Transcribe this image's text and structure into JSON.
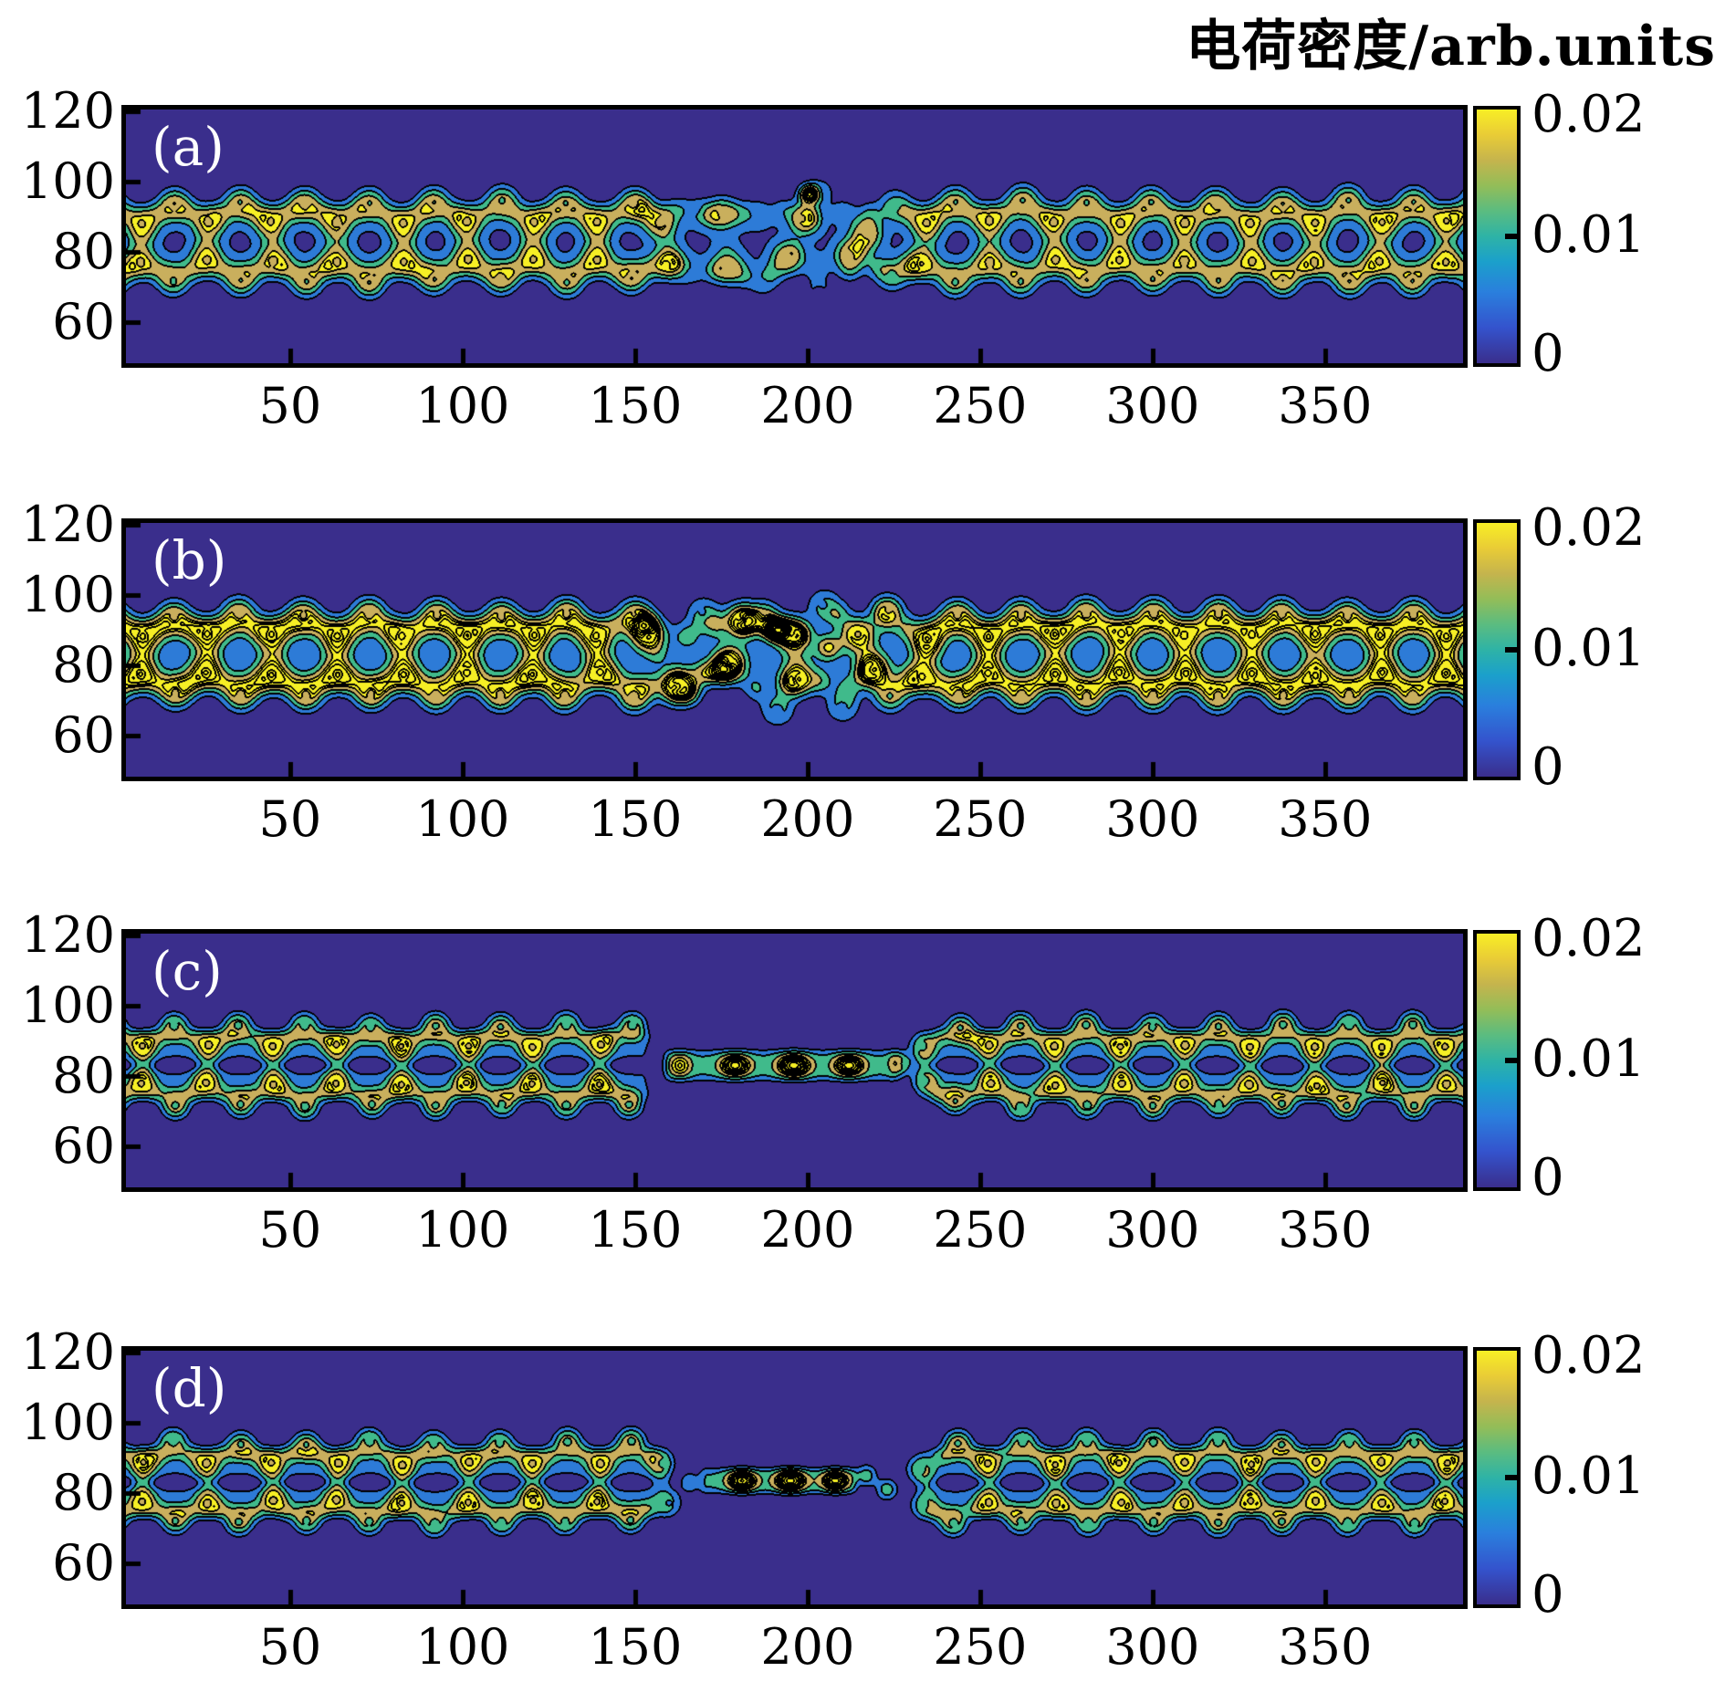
{
  "title": "电荷密度/arb.units",
  "colorbar": {
    "labels": [
      "0.02",
      "0.01",
      "0"
    ],
    "min": 0,
    "max": 0.02,
    "tick_values": [
      0,
      0.01,
      0.02
    ],
    "gradient": [
      "#3a2e8c 0%",
      "#3453cd 14%",
      "#2a7fdd 28%",
      "#1ba0cb 40%",
      "#2eb3a6 50%",
      "#5bbc80 60%",
      "#93bd58 70%",
      "#c5b44d 80%",
      "#e9cc36 90%",
      "#f8ee25 100%"
    ]
  },
  "chart_data": {
    "type": "heatmap",
    "subtype": "filled-contour",
    "title": "电荷密度/arb.units",
    "xlabel": "",
    "ylabel": "",
    "xlim": [
      2.4,
      390
    ],
    "ylim": [
      48.3,
      120.5
    ],
    "x_ticks": [
      50,
      100,
      150,
      200,
      250,
      300,
      350
    ],
    "y_ticks": [
      120,
      100,
      80,
      60
    ],
    "value_range": [
      0,
      0.02
    ],
    "fill_levels": [
      0,
      0.004,
      0.008,
      0.012,
      0.016
    ],
    "extra_line_step_above": 0.002,
    "fill_colors": [
      "#3a2e8c",
      "#2d7bd7",
      "#40ba8b",
      "#c9af5d",
      "#f6ef25"
    ],
    "line_color": "#000000",
    "colormap": "parula",
    "lattice": {
      "period": 18.9,
      "x0": 16.5,
      "y_center": 83,
      "description": "zigzag honeycomb nanoribbon charge density, hexagon rings centered on y=83"
    },
    "panels": [
      {
        "id": "a",
        "label": "(a)",
        "mode": "perturb",
        "gap": [
          162,
          222
        ],
        "A": 0.0172,
        "sig": 3.05,
        "dip": 0.42,
        "dipSig": 1.15,
        "bondAmp": 0.006,
        "bondSig": 2.45,
        "vBond": 0.6,
        "nearJ": 1.0,
        "gj": 2.8,
        "gAmp": 1.1,
        "gVertex": 0.55,
        "taperMin": 0.5,
        "pairMin": 0.75,
        "taperLen": 14,
        "stripes": [
          {
            "y": 83,
            "w": 9.3,
            "amp": 0.0031
          }
        ],
        "maskGap": false,
        "spots": [
          {
            "x": 200.5,
            "y": 96.5,
            "amp": 0.021,
            "sx": 2.1,
            "sy": 1.9
          }
        ],
        "extraAtoms": [],
        "chain": null,
        "defect": "distorted reconstructed lattice bridge with one high-density adatom spot near x=200, y=96"
      },
      {
        "id": "b",
        "label": "(b)",
        "mode": "perturb",
        "gap": [
          156,
          222
        ],
        "A": 0.0195,
        "sig": 3.25,
        "dip": 0.42,
        "dipSig": 1.15,
        "bondAmp": 0.007,
        "bondSig": 2.5,
        "vBond": 0.6,
        "nearJ": 1.0,
        "gj": 4.2,
        "gAmp": 1.3,
        "gVertex": 0.7,
        "taperMin": 0.6,
        "pairMin": 0.75,
        "taperLen": 12,
        "stripes": [
          {
            "y": 83,
            "w": 9.6,
            "amp": 0.004
          }
        ],
        "maskGap": false,
        "spots": [
          {
            "x": 191,
            "y": 90,
            "amp": 0.022,
            "sx": 2.3,
            "sy": 2.0
          },
          {
            "x": 175,
            "y": 78,
            "amp": 0.013,
            "sx": 3.2,
            "sy": 2.2
          },
          {
            "x": 206,
            "y": 85,
            "amp": 0.013,
            "sx": 2.6,
            "sy": 2.4
          }
        ],
        "extraAtoms": [],
        "chain": null,
        "defect": "amorphized high-density cluster spanning x=160-220 with nested contour rings"
      },
      {
        "id": "c",
        "label": "(c)",
        "mode": "remove",
        "gap": [
          158,
          231
        ],
        "A": 0.0178,
        "sig": 2.6,
        "dip": 0.5,
        "dipSig": 1.05,
        "bondAmp": 0.0056,
        "bondSig": 2.05,
        "vBond": 1.0,
        "nearJ": 1.3,
        "gj": 0,
        "gAmp": 1,
        "gVertex": 1,
        "taperMin": 0.32,
        "pairMin": 0.5,
        "taperLen": 11,
        "stripes": [
          {
            "y": 77.54,
            "w": 4.4,
            "amp": 0.0046
          },
          {
            "y": 88.46,
            "w": 4.4,
            "amp": 0.0046
          }
        ],
        "maskGap": true,
        "spots": [
          {
            "x": 179,
            "y": 83,
            "amp": 0.019,
            "sx": 3.1,
            "sy": 2.1
          },
          {
            "x": 196,
            "y": 83,
            "amp": 0.021,
            "sx": 3.3,
            "sy": 2.2
          },
          {
            "x": 212,
            "y": 83,
            "amp": 0.019,
            "sx": 3.1,
            "sy": 2.1
          }
        ],
        "extraAtoms": [
          {
            "x": 163,
            "y": 83,
            "amp": 0.013,
            "sig": 2.2
          },
          {
            "x": 227,
            "y": 83.5,
            "amp": 0.013,
            "sig": 2.2
          }
        ],
        "chain": {
          "x0": 161,
          "x1": 224,
          "y": 83,
          "wy": 4.6,
          "amp": 0.0086,
          "soft": 5
        },
        "defect": "linear carbon chain bridge along y=83 between x=161-224 with three bright cores"
      },
      {
        "id": "d",
        "label": "(d)",
        "mode": "remove",
        "gap": [
          161,
          231
        ],
        "A": 0.0178,
        "sig": 2.6,
        "dip": 0.5,
        "dipSig": 1.05,
        "bondAmp": 0.0056,
        "bondSig": 2.05,
        "vBond": 1.0,
        "nearJ": 1.3,
        "gj": 0,
        "gAmp": 1,
        "gVertex": 1,
        "taperMin": 0.22,
        "pairMin": 0.4,
        "taperLen": 9,
        "stripes": [
          {
            "y": 77.54,
            "w": 4.4,
            "amp": 0.0046
          },
          {
            "y": 88.46,
            "w": 4.4,
            "amp": 0.0046
          }
        ],
        "maskGap": true,
        "spots": [
          {
            "x": 181,
            "y": 83.5,
            "amp": 0.02,
            "sx": 3.0,
            "sy": 2.0
          },
          {
            "x": 195,
            "y": 83.5,
            "amp": 0.021,
            "sx": 3.2,
            "sy": 2.1
          },
          {
            "x": 208,
            "y": 83.5,
            "amp": 0.019,
            "sx": 2.8,
            "sy": 2.0
          }
        ],
        "extraAtoms": [
          {
            "x": 217,
            "y": 85,
            "amp": 0.012,
            "sig": 2.0
          },
          {
            "x": 223,
            "y": 81,
            "amp": 0.012,
            "sig": 2.0
          },
          {
            "x": 166,
            "y": 83,
            "amp": 0.01,
            "sig": 1.8
          }
        ],
        "chain": {
          "x0": 171,
          "x1": 212,
          "y": 83.5,
          "wy": 3.8,
          "amp": 0.0082,
          "soft": 4
        },
        "defect": "shorter pinched-off carbon chain bridge along y=83.5 between x=171-212 with three bright cores"
      }
    ]
  }
}
